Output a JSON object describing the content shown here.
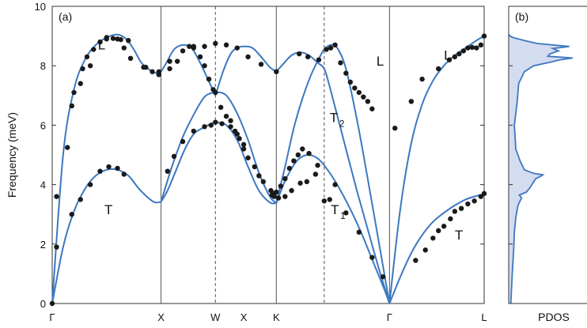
{
  "colors": {
    "curve": "#3c78c0",
    "points": "#1a1a1a",
    "pdos_fill": "#d4dcef",
    "frame": "#333333",
    "vline": "#555555"
  },
  "chart_data": [
    {
      "type": "line",
      "panel_label": "(a)",
      "ylabel": "Frequency (meV)",
      "xlabel": "",
      "ylim": [
        0,
        10
      ],
      "yticks": [
        "0",
        "2",
        "4",
        "6",
        "8",
        "10"
      ],
      "xlim": [
        0,
        3.97
      ],
      "grid": false,
      "high_symmetry_points": [
        {
          "label": "Γ",
          "x": 0,
          "line": "none"
        },
        {
          "label": "X",
          "x": 1.0,
          "line": "solid"
        },
        {
          "label": "W",
          "x": 1.5,
          "line": "dashed"
        },
        {
          "label": "X",
          "x": 1.76,
          "line": "none"
        },
        {
          "label": "K",
          "x": 2.06,
          "line": "solid"
        },
        {
          "label": "",
          "x": 2.5,
          "line": "dashed"
        },
        {
          "label": "Γ",
          "x": 3.1,
          "line": "solid"
        },
        {
          "label": "L",
          "x": 3.97,
          "line": "none"
        }
      ],
      "branch_labels": [
        {
          "text": "L",
          "sub": "",
          "x": 0.42,
          "y": 8.55
        },
        {
          "text": "T",
          "sub": "",
          "x": 0.48,
          "y": 3.0
        },
        {
          "text": "T",
          "sub": "2",
          "x": 2.55,
          "y": 6.1
        },
        {
          "text": "T",
          "sub": "1",
          "x": 2.56,
          "y": 3.0
        },
        {
          "text": "L",
          "sub": "",
          "x": 2.98,
          "y": 8.0
        },
        {
          "text": "L",
          "sub": "",
          "x": 3.6,
          "y": 8.2
        },
        {
          "text": "T",
          "sub": "",
          "x": 3.7,
          "y": 2.15
        }
      ],
      "series": [
        {
          "kind": "curve",
          "x": [
            0,
            0.1,
            0.2,
            0.3,
            0.4,
            0.5,
            0.6,
            0.68,
            0.75,
            0.82,
            0.9,
            0.96,
            1.0
          ],
          "y": [
            0,
            5.0,
            7.2,
            8.2,
            8.7,
            8.95,
            9.05,
            8.9,
            8.55,
            8.1,
            7.85,
            7.75,
            7.8
          ]
        },
        {
          "kind": "curve",
          "x": [
            1.0,
            1.05,
            1.12,
            1.2,
            1.28,
            1.36,
            1.43,
            1.5
          ],
          "y": [
            7.8,
            8.1,
            8.55,
            8.7,
            8.6,
            8.1,
            7.55,
            7.0
          ]
        },
        {
          "kind": "curve",
          "x": [
            1.5,
            1.57,
            1.64,
            1.7,
            1.76,
            1.84,
            1.92,
            2.0,
            2.06
          ],
          "y": [
            7.0,
            7.8,
            8.4,
            8.6,
            8.65,
            8.6,
            8.3,
            7.95,
            7.8
          ]
        },
        {
          "kind": "curve",
          "x": [
            2.06,
            2.12,
            2.2,
            2.28,
            2.36,
            2.44,
            2.5,
            2.55,
            2.6,
            2.7,
            2.8,
            2.9,
            3.0,
            3.1
          ],
          "y": [
            7.8,
            8.05,
            8.35,
            8.45,
            8.35,
            8.1,
            7.9,
            7.3,
            6.6,
            5.2,
            3.8,
            2.5,
            1.2,
            0
          ]
        },
        {
          "kind": "curve",
          "x": [
            0,
            0.1,
            0.2,
            0.3,
            0.4,
            0.5,
            0.6,
            0.7,
            0.8,
            0.9,
            0.95,
            1.0
          ],
          "y": [
            0,
            1.9,
            3.1,
            3.85,
            4.3,
            4.5,
            4.5,
            4.3,
            3.85,
            3.5,
            3.4,
            3.42
          ]
        },
        {
          "kind": "curve",
          "x": [
            1.0,
            1.06,
            1.14,
            1.22,
            1.3,
            1.38,
            1.46,
            1.5
          ],
          "y": [
            3.42,
            3.8,
            4.5,
            5.2,
            5.7,
            5.9,
            6.05,
            6.1
          ]
        },
        {
          "kind": "curve",
          "x": [
            1.5,
            1.6,
            1.7,
            1.8,
            1.9,
            2.0,
            2.06
          ],
          "y": [
            6.1,
            6.0,
            5.5,
            4.6,
            3.8,
            3.4,
            3.38
          ]
        },
        {
          "kind": "curve",
          "x": [
            1.0,
            1.1,
            1.2,
            1.3,
            1.4,
            1.5,
            1.6,
            1.7,
            1.8,
            1.9,
            2.0,
            2.06
          ],
          "y": [
            3.42,
            4.6,
            5.6,
            6.35,
            6.95,
            7.1,
            7.0,
            6.4,
            5.5,
            4.4,
            3.6,
            3.38
          ]
        },
        {
          "kind": "curve",
          "x": [
            2.06,
            2.15,
            2.25,
            2.35,
            2.45,
            2.55,
            2.65,
            2.75,
            2.85,
            2.95,
            3.05,
            3.1
          ],
          "y": [
            3.38,
            4.2,
            4.8,
            5.0,
            4.85,
            4.4,
            3.8,
            3.1,
            2.3,
            1.4,
            0.5,
            0
          ]
        },
        {
          "kind": "curve",
          "x": [
            2.06,
            2.14,
            2.22,
            2.3,
            2.38,
            2.46,
            2.5,
            2.56,
            2.62,
            2.7,
            2.8,
            2.9,
            3.0,
            3.1
          ],
          "y": [
            3.38,
            4.6,
            5.9,
            6.9,
            7.7,
            8.3,
            8.55,
            8.7,
            8.6,
            7.9,
            6.2,
            4.2,
            2.1,
            0
          ]
        },
        {
          "kind": "curve",
          "x": [
            3.1,
            3.2,
            3.3,
            3.4,
            3.5,
            3.6,
            3.7,
            3.8,
            3.9,
            3.97
          ],
          "y": [
            0,
            3.2,
            5.4,
            6.7,
            7.5,
            8.0,
            8.35,
            8.6,
            8.85,
            9.0
          ]
        },
        {
          "kind": "curve",
          "x": [
            3.1,
            3.2,
            3.3,
            3.4,
            3.5,
            3.6,
            3.7,
            3.8,
            3.9,
            3.97
          ],
          "y": [
            0,
            0.9,
            1.7,
            2.3,
            2.75,
            3.05,
            3.3,
            3.5,
            3.62,
            3.68
          ]
        },
        {
          "kind": "points",
          "x": [
            0.2,
            0.28,
            0.32,
            0.38,
            0.44,
            0.5,
            0.56,
            0.6,
            0.63,
            0.66,
            0.72,
            0.86,
            0.92,
            0.98,
            1.08,
            1.3,
            1.4,
            1.5,
            1.6,
            1.7,
            1.8,
            1.92,
            2.06,
            2.27,
            2.35,
            2.45,
            2.52,
            2.56,
            2.6,
            2.65,
            2.7,
            2.74,
            2.78,
            2.82,
            2.86,
            2.9,
            2.94,
            3.15,
            3.3,
            3.4,
            3.55,
            3.65,
            3.7,
            3.74,
            3.78,
            3.82,
            3.86,
            3.9,
            3.94,
            3.97,
            0.04,
            0.14,
            0.18,
            0.26,
            0.35,
            0.5,
            0.7,
            0.84,
            0.98,
            1.08,
            1.15,
            1.2,
            1.26,
            1.3,
            1.36,
            1.4,
            1.44,
            1.48,
            1.5,
            1.55,
            1.6,
            1.64,
            1.68,
            1.72,
            1.76,
            1.8,
            1.86,
            1.9,
            1.94,
            2.02,
            2.04,
            2.06,
            2.1,
            2.14,
            2.18,
            2.22,
            2.26,
            2.3,
            2.36,
            2.44,
            2.6,
            2.7,
            2.82,
            2.94,
            3.04,
            0.0,
            0.04,
            0.18,
            0.26,
            0.35,
            0.44,
            0.52,
            0.6,
            0.66,
            1.06,
            1.12,
            1.2,
            1.3,
            1.4,
            1.46,
            1.5,
            1.56,
            1.64,
            1.7,
            1.76,
            2.03,
            2.08,
            2.14,
            2.2,
            2.28,
            2.34,
            2.42,
            2.55,
            3.34,
            3.43,
            3.5,
            3.55,
            3.6,
            3.66,
            3.7,
            3.76,
            3.82,
            3.88,
            3.94,
            3.97,
            2.01,
            2.5
          ],
          "y": [
            7.1,
            7.9,
            8.3,
            8.55,
            8.8,
            8.95,
            8.92,
            8.9,
            8.88,
            8.6,
            8.25,
            7.95,
            7.8,
            7.7,
            8.15,
            8.65,
            8.65,
            8.75,
            8.7,
            8.6,
            8.3,
            8.05,
            7.8,
            8.4,
            8.3,
            8.2,
            8.55,
            8.6,
            8.7,
            8.1,
            7.75,
            7.45,
            7.25,
            7.1,
            6.95,
            6.8,
            6.55,
            5.9,
            6.8,
            7.55,
            7.9,
            8.2,
            8.3,
            8.4,
            8.5,
            8.6,
            8.62,
            8.6,
            8.7,
            9.0,
            3.6,
            5.25,
            6.65,
            7.4,
            8.0,
            8.9,
            8.85,
            7.95,
            7.8,
            7.9,
            8.15,
            8.5,
            8.65,
            8.6,
            8.3,
            8.0,
            7.55,
            7.2,
            7.1,
            6.6,
            6.3,
            6.15,
            5.8,
            5.55,
            5.2,
            4.9,
            4.6,
            4.3,
            4.1,
            3.65,
            3.6,
            3.75,
            3.95,
            4.2,
            4.55,
            4.8,
            5.0,
            5.2,
            5.05,
            4.65,
            4.0,
            3.05,
            2.4,
            1.55,
            0.9,
            0.0,
            1.9,
            3.0,
            3.5,
            4.0,
            4.45,
            4.6,
            4.55,
            4.35,
            4.45,
            4.95,
            5.45,
            5.8,
            5.95,
            6.0,
            6.1,
            6.05,
            5.95,
            5.7,
            5.35,
            3.7,
            3.55,
            3.6,
            3.8,
            4.05,
            4.1,
            4.35,
            3.5,
            1.45,
            1.8,
            2.2,
            2.45,
            2.6,
            2.85,
            3.1,
            3.2,
            3.35,
            3.45,
            3.6,
            3.7,
            3.8,
            3.45
          ]
        }
      ]
    },
    {
      "type": "area",
      "panel_label": "(b)",
      "xlabel": "PDOS",
      "ylim": [
        0,
        10
      ],
      "series": [
        {
          "name": "",
          "y": [
            0,
            1.0,
            1.8,
            2.4,
            2.9,
            3.3,
            3.55,
            3.65,
            3.75,
            3.9,
            4.05,
            4.2,
            4.28,
            4.33,
            4.38,
            4.5,
            4.8,
            5.2,
            6.0,
            6.8,
            7.4,
            7.8,
            8.0,
            8.12,
            8.2,
            8.26,
            8.32,
            8.4,
            8.5,
            8.58,
            8.65,
            8.75,
            8.85,
            8.95,
            9.0,
            9.05
          ],
          "value": [
            0.03,
            0.05,
            0.07,
            0.08,
            0.1,
            0.13,
            0.18,
            0.15,
            0.25,
            0.3,
            0.34,
            0.38,
            0.45,
            0.48,
            0.35,
            0.22,
            0.16,
            0.1,
            0.08,
            0.12,
            0.14,
            0.22,
            0.35,
            0.58,
            0.72,
            0.9,
            0.55,
            0.58,
            0.7,
            0.62,
            0.85,
            0.4,
            0.22,
            0.06,
            0.02,
            0.0
          ]
        }
      ]
    }
  ]
}
